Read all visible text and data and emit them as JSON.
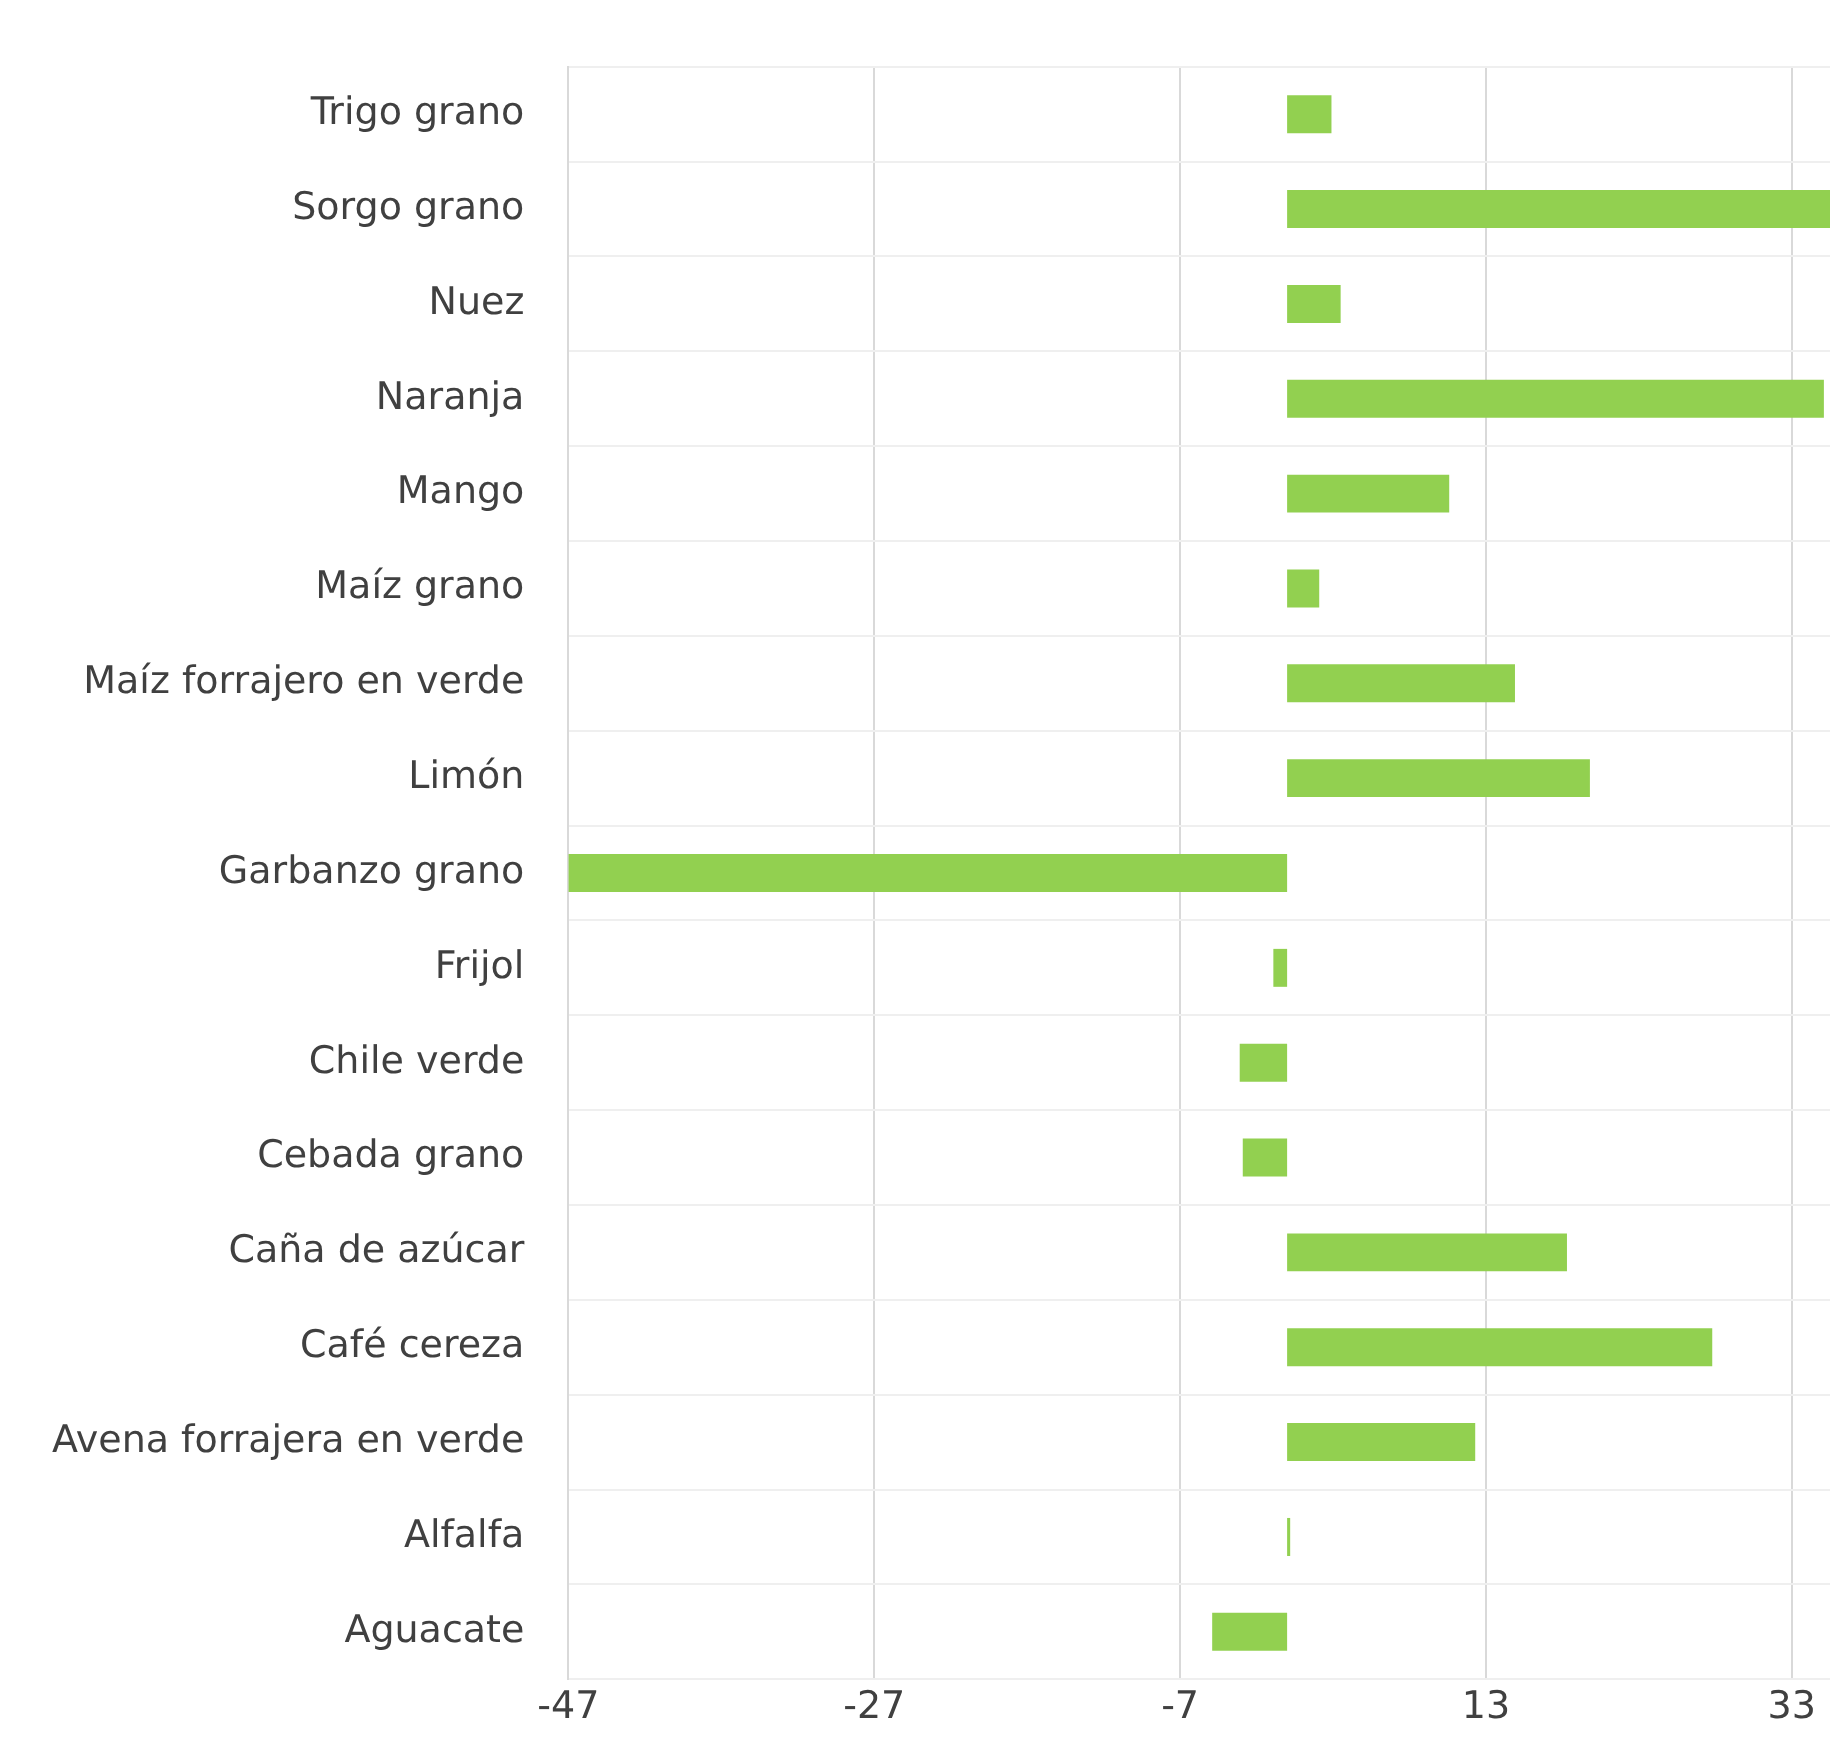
{
  "chart_data": {
    "type": "bar",
    "orientation": "horizontal",
    "categories": [
      "Trigo grano",
      "Sorgo grano",
      "Nuez",
      "Naranja",
      "Mango",
      "Maíz grano",
      "Maíz forrajero en verde",
      "Limón",
      "Garbanzo grano",
      "Frijol",
      "Chile verde",
      "Cebada grano",
      "Caña de azúcar",
      "Café cereza",
      "Avena forrajera en verde",
      "Alfalfa",
      "Aguacate"
    ],
    "values": [
      2.9,
      35.5,
      3.5,
      35.1,
      10.6,
      2.1,
      14.9,
      19.8,
      -47,
      -0.9,
      -3.1,
      -2.9,
      18.3,
      27.8,
      12.3,
      0.2,
      -4.9
    ],
    "color": "#92d050",
    "xlim": [
      -47,
      35.5
    ],
    "xticks": [
      -47,
      -27,
      -7,
      13,
      33
    ],
    "grid": true
  }
}
